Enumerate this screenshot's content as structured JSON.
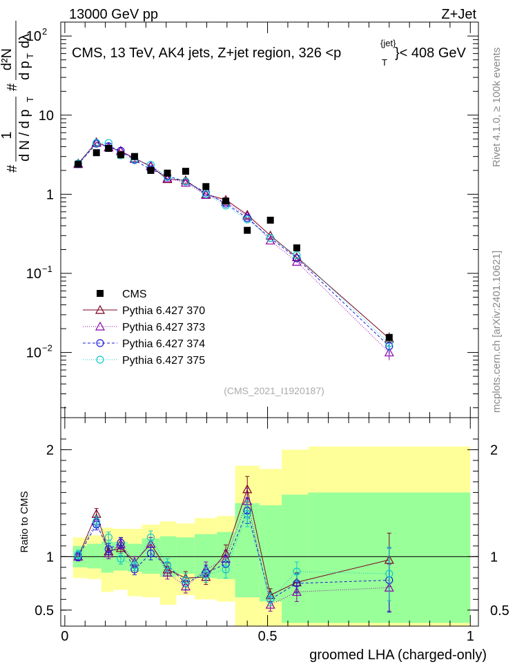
{
  "header": {
    "left": "13000 GeV pp",
    "right": "Z+Jet"
  },
  "side_labels": {
    "rivet": "Rivet 4.1.0, ≥ 100k events",
    "mcplots": "mcplots.cern.ch [arXiv:2401.10621]"
  },
  "watermark": "(CMS_2021_I1920187)",
  "colors": {
    "cms": "#000000",
    "p370": "#7a0020",
    "p373": "#8a00a8",
    "p374": "#1a1ad8",
    "p375": "#10c8c8",
    "band_green": "#99ff99",
    "band_yellow": "#ffff99"
  },
  "chart_data": [
    {
      "type": "scatter",
      "title": "CMS, 13 TeV, AK4 jets, Z+jet region, 326 <p_T^{jet}< 408 GeV",
      "title_parts": {
        "main": "CMS, 13 TeV, AK4 jets, Z+jet region, 326 <p",
        "sup": "{jet}",
        "sub": "T",
        "tail": "}< 408 GeV"
      },
      "ylabel_parts": {
        "left": "#",
        "frac": "1",
        "den": "d N / d p",
        "sub": "T",
        "hash": "#",
        "dd2n": "d²N",
        "dpt": "d p",
        "dl": "dλ"
      },
      "yscale": "log",
      "ylim": [
        0.0015,
        150
      ],
      "xlim": [
        -0.01,
        1.02
      ],
      "y_ticks": [
        {
          "v": 100,
          "base": "10",
          "exp": "2"
        },
        {
          "v": 10,
          "base": "10",
          "exp": ""
        },
        {
          "v": 1,
          "base": "1",
          "exp": ""
        },
        {
          "v": 0.1,
          "base": "10",
          "exp": "−1"
        },
        {
          "v": 0.01,
          "base": "10",
          "exp": "−2"
        }
      ],
      "x": [
        0.033,
        0.078,
        0.108,
        0.138,
        0.172,
        0.212,
        0.253,
        0.298,
        0.348,
        0.397,
        0.45,
        0.507,
        0.572,
        0.8
      ],
      "series": [
        {
          "name": "CMS",
          "key": "cms",
          "marker": "square",
          "values": [
            2.4,
            3.35,
            3.8,
            3.15,
            3.0,
            2.0,
            1.85,
            1.95,
            1.25,
            0.82,
            0.35,
            0.47,
            0.21,
            0.0155
          ],
          "err_lo": [
            0,
            0,
            0,
            0,
            0,
            0,
            0,
            0,
            0,
            0,
            0,
            0,
            0,
            0.002
          ],
          "err_hi": [
            0,
            0,
            0,
            0,
            0,
            0,
            0,
            0,
            0,
            0,
            0,
            0,
            0,
            0.002
          ]
        },
        {
          "name": "Pythia 6.427 370",
          "key": "p370",
          "marker": "triangle",
          "dash": "",
          "values": [
            2.45,
            4.55,
            3.95,
            3.5,
            2.85,
            2.25,
            1.55,
            1.5,
            1.0,
            0.85,
            0.55,
            0.3,
            0.16,
            0.015
          ]
        },
        {
          "name": "Pythia 6.427 373",
          "key": "p373",
          "marker": "triangle",
          "dash": "1,2",
          "values": [
            2.4,
            4.45,
            3.9,
            3.55,
            2.8,
            2.3,
            1.6,
            1.4,
            0.98,
            0.8,
            0.53,
            0.26,
            0.14,
            0.01
          ]
        },
        {
          "name": "Pythia 6.427 374",
          "key": "p374",
          "marker": "circle",
          "dash": "4,3",
          "values": [
            2.4,
            4.35,
            4.05,
            3.55,
            2.7,
            2.05,
            1.7,
            1.45,
            1.05,
            0.76,
            0.5,
            0.28,
            0.155,
            0.012
          ]
        },
        {
          "name": "Pythia 6.427 375",
          "key": "p375",
          "marker": "circle",
          "dash": "1,2",
          "values": [
            2.45,
            4.45,
            4.45,
            3.1,
            2.75,
            2.35,
            1.65,
            1.45,
            1.0,
            0.72,
            0.48,
            0.28,
            0.17,
            0.013
          ]
        }
      ]
    },
    {
      "type": "line",
      "ylabel": "Ratio to CMS",
      "xlabel": "groomed LHA (charged-only)",
      "xlim": [
        -0.01,
        1.02
      ],
      "ylim": [
        0.35,
        2.3
      ],
      "x_ticks": [
        {
          "v": 0,
          "label": "0"
        },
        {
          "v": 0.5,
          "label": "0.5"
        },
        {
          "v": 1,
          "label": "1"
        }
      ],
      "y_ticks": [
        {
          "v": 2,
          "label": "2"
        },
        {
          "v": 1,
          "label": "1"
        },
        {
          "v": 0.5,
          "label": "0.5"
        }
      ],
      "bin_edges": [
        0.02,
        0.055,
        0.09,
        0.12,
        0.155,
        0.19,
        0.235,
        0.275,
        0.32,
        0.375,
        0.42,
        0.48,
        0.535,
        0.6,
        1.0
      ],
      "band_green": {
        "lo": [
          0.9,
          0.89,
          0.85,
          0.87,
          0.86,
          0.84,
          0.81,
          0.84,
          0.8,
          0.79,
          0.62,
          0.58,
          0.38,
          0.38
        ],
        "hi": [
          1.1,
          1.12,
          1.14,
          1.14,
          1.12,
          1.17,
          1.19,
          1.18,
          1.21,
          1.23,
          1.5,
          1.48,
          1.58,
          1.6
        ]
      },
      "band_yellow": {
        "lo": [
          0.8,
          0.79,
          0.67,
          0.69,
          0.63,
          0.62,
          0.55,
          0.64,
          0.6,
          0.58,
          0.1,
          0.1,
          0.1,
          0.1
        ],
        "hi": [
          1.18,
          1.2,
          1.27,
          1.26,
          1.26,
          1.3,
          1.33,
          1.31,
          1.36,
          1.38,
          1.85,
          1.82,
          2.0,
          2.03
        ]
      },
      "reference": 1,
      "series": [
        {
          "name": "Pythia 6.427 370",
          "key": "p370",
          "marker": "triangle",
          "dash": "",
          "values": [
            1.0,
            1.4,
            1.05,
            1.08,
            0.95,
            1.12,
            0.88,
            0.8,
            0.81,
            1.03,
            1.63,
            0.64,
            0.76,
            0.97
          ],
          "err": [
            0.04,
            0.05,
            0.05,
            0.05,
            0.05,
            0.06,
            0.06,
            0.06,
            0.07,
            0.08,
            0.12,
            0.06,
            0.09,
            0.25
          ]
        },
        {
          "name": "Pythia 6.427 373",
          "key": "p373",
          "marker": "triangle",
          "dash": "1,2",
          "values": [
            1.0,
            1.33,
            1.03,
            1.12,
            0.95,
            1.12,
            0.85,
            0.72,
            0.88,
            0.98,
            1.52,
            0.55,
            0.67,
            0.71
          ],
          "err": [
            0.04,
            0.05,
            0.05,
            0.05,
            0.05,
            0.06,
            0.06,
            0.06,
            0.07,
            0.08,
            0.12,
            0.06,
            0.09,
            0.22
          ]
        },
        {
          "name": "Pythia 6.427 374",
          "key": "p374",
          "marker": "circle",
          "dash": "4,3",
          "values": [
            1.0,
            1.3,
            1.07,
            1.13,
            0.88,
            1.03,
            0.92,
            0.75,
            0.85,
            0.93,
            1.43,
            0.6,
            0.75,
            0.78
          ],
          "err": [
            0.04,
            0.05,
            0.05,
            0.05,
            0.05,
            0.06,
            0.06,
            0.06,
            0.07,
            0.08,
            0.12,
            0.06,
            0.09,
            0.3
          ]
        },
        {
          "name": "Pythia 6.427 375",
          "key": "p375",
          "marker": "circle",
          "dash": "1,2",
          "values": [
            1.02,
            1.33,
            1.18,
            0.98,
            0.92,
            1.18,
            0.92,
            0.78,
            0.83,
            0.88,
            1.4,
            0.6,
            0.86,
            0.84
          ],
          "err": [
            0.04,
            0.05,
            0.05,
            0.05,
            0.05,
            0.06,
            0.06,
            0.06,
            0.07,
            0.08,
            0.12,
            0.06,
            0.09,
            0.25
          ]
        }
      ]
    }
  ]
}
